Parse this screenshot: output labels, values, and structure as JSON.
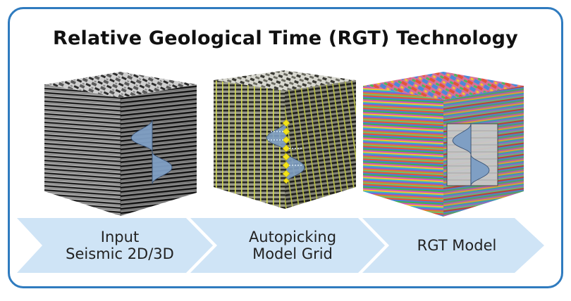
{
  "title": "Relative Geological Time (RGT) Technology",
  "colors": {
    "frame": "#2f7bbf",
    "arrow_fill": "#cfe4f6",
    "wavelet_fill": "#7f9fc4",
    "pick_marker": "#f2e21a",
    "grid_line": "#d6dd55"
  },
  "steps": [
    {
      "line1": "Input",
      "line2": "Seismic 2D/3D",
      "cube": "seismic-cube"
    },
    {
      "line1": "Autopicking",
      "line2": "Model Grid",
      "cube": "model-grid-cube"
    },
    {
      "line1": "RGT Model",
      "line2": "",
      "cube": "rgt-model-cube"
    }
  ]
}
